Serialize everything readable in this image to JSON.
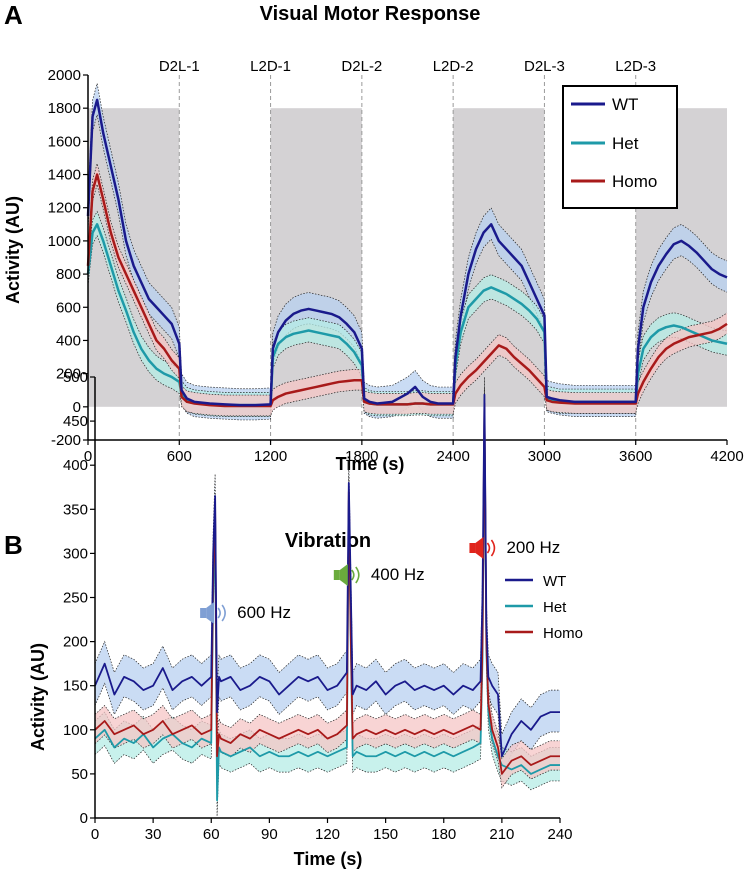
{
  "panel_a": {
    "letter": "A",
    "legend": [
      "WT",
      "Het",
      "Homo"
    ]
  },
  "panel_b": {
    "letter": "B",
    "legend": [
      "WT",
      "Het",
      "Homo"
    ]
  },
  "colors": {
    "wt": "#1a1a8c",
    "het": "#1e9aa8",
    "homo": "#a81a1a",
    "wt_band": "#b8d0f0",
    "het_band": "#b6ece6",
    "homo_band": "#f6c6c6",
    "dark_shade": "#d4d2d4",
    "icon_600": "#7f9fd4",
    "icon_400": "#6aab3c",
    "icon_200": "#e0241c"
  },
  "icons": [
    "speaker-icon-600hz",
    "speaker-icon-400hz",
    "speaker-icon-200hz"
  ],
  "chart_data": [
    {
      "type": "line",
      "title": "Visual Motor Response",
      "xlabel": "Time (s)",
      "ylabel": "Activity (AU)",
      "xlim": [
        0,
        4200
      ],
      "ylim": [
        -200,
        2000
      ],
      "xticks": [
        0,
        600,
        1200,
        1800,
        2400,
        3000,
        3600,
        4200
      ],
      "yticks": [
        -200,
        0,
        200,
        400,
        600,
        800,
        1000,
        1200,
        1400,
        1600,
        1800,
        2000
      ],
      "phases": [
        {
          "label": "D2L-1",
          "at": 600
        },
        {
          "label": "L2D-1",
          "at": 1200
        },
        {
          "label": "D2L-2",
          "at": 1800
        },
        {
          "label": "L2D-2",
          "at": 2400
        },
        {
          "label": "D2L-3",
          "at": 3000
        },
        {
          "label": "L2D-3",
          "at": 3600
        }
      ],
      "dark_periods": [
        [
          0,
          600
        ],
        [
          1200,
          1800
        ],
        [
          2400,
          3000
        ],
        [
          3600,
          4200
        ]
      ],
      "dark_period_top": 1800,
      "legend_position": "top-right",
      "series": [
        {
          "name": "WT",
          "x": [
            0,
            30,
            60,
            100,
            150,
            200,
            250,
            300,
            350,
            400,
            450,
            500,
            550,
            600,
            615,
            650,
            700,
            800,
            900,
            1000,
            1100,
            1200,
            1215,
            1250,
            1300,
            1350,
            1400,
            1450,
            1500,
            1550,
            1600,
            1650,
            1700,
            1750,
            1800,
            1815,
            1850,
            1900,
            2000,
            2100,
            2150,
            2200,
            2250,
            2300,
            2400,
            2415,
            2450,
            2500,
            2550,
            2600,
            2650,
            2700,
            2750,
            2800,
            2850,
            2900,
            2950,
            3000,
            3015,
            3050,
            3100,
            3200,
            3300,
            3400,
            3500,
            3600,
            3615,
            3650,
            3700,
            3750,
            3800,
            3850,
            3900,
            3950,
            4000,
            4050,
            4100,
            4150,
            4200
          ],
          "y": [
            1150,
            1750,
            1850,
            1650,
            1450,
            1250,
            1000,
            850,
            750,
            650,
            600,
            550,
            500,
            380,
            100,
            50,
            30,
            20,
            15,
            10,
            10,
            15,
            350,
            450,
            520,
            560,
            580,
            590,
            580,
            570,
            560,
            540,
            500,
            450,
            350,
            50,
            30,
            20,
            30,
            80,
            120,
            60,
            30,
            20,
            20,
            300,
            550,
            800,
            950,
            1050,
            1100,
            1000,
            950,
            900,
            850,
            750,
            650,
            550,
            60,
            50,
            40,
            30,
            30,
            30,
            30,
            30,
            350,
            600,
            750,
            850,
            920,
            980,
            1000,
            970,
            930,
            880,
            830,
            800,
            780
          ]
        },
        {
          "name": "Het",
          "x": [
            0,
            30,
            60,
            100,
            150,
            200,
            250,
            300,
            350,
            400,
            450,
            500,
            550,
            600,
            615,
            650,
            700,
            800,
            900,
            1000,
            1100,
            1200,
            1215,
            1250,
            1300,
            1350,
            1400,
            1450,
            1500,
            1550,
            1600,
            1650,
            1700,
            1750,
            1800,
            1815,
            1850,
            1900,
            2000,
            2100,
            2150,
            2200,
            2250,
            2300,
            2400,
            2415,
            2450,
            2500,
            2550,
            2600,
            2650,
            2700,
            2750,
            2800,
            2850,
            2900,
            2950,
            3000,
            3015,
            3050,
            3100,
            3200,
            3300,
            3400,
            3500,
            3600,
            3615,
            3650,
            3700,
            3750,
            3800,
            3850,
            3900,
            3950,
            4000,
            4050,
            4100,
            4150,
            4200
          ],
          "y": [
            800,
            1050,
            1100,
            1000,
            850,
            700,
            580,
            450,
            350,
            280,
            230,
            200,
            180,
            150,
            80,
            40,
            25,
            15,
            10,
            10,
            10,
            10,
            300,
            380,
            420,
            440,
            450,
            460,
            450,
            440,
            430,
            420,
            380,
            330,
            250,
            40,
            20,
            15,
            15,
            15,
            20,
            20,
            15,
            15,
            15,
            250,
            450,
            600,
            650,
            700,
            720,
            700,
            680,
            650,
            620,
            580,
            530,
            450,
            50,
            40,
            30,
            30,
            30,
            30,
            30,
            30,
            200,
            350,
            420,
            460,
            480,
            490,
            480,
            460,
            440,
            420,
            400,
            390,
            380
          ]
        },
        {
          "name": "Homo",
          "x": [
            0,
            30,
            60,
            100,
            150,
            200,
            250,
            300,
            350,
            400,
            450,
            500,
            550,
            600,
            615,
            650,
            700,
            800,
            900,
            1000,
            1100,
            1200,
            1215,
            1250,
            1300,
            1350,
            1400,
            1450,
            1500,
            1550,
            1600,
            1650,
            1700,
            1750,
            1800,
            1815,
            1850,
            1900,
            2000,
            2100,
            2150,
            2200,
            2250,
            2300,
            2400,
            2415,
            2450,
            2500,
            2550,
            2600,
            2650,
            2700,
            2750,
            2800,
            2850,
            2900,
            2950,
            3000,
            3015,
            3050,
            3100,
            3200,
            3300,
            3400,
            3500,
            3600,
            3615,
            3650,
            3700,
            3750,
            3800,
            3850,
            3900,
            3950,
            4000,
            4050,
            4100,
            4150,
            4200
          ],
          "y": [
            850,
            1300,
            1400,
            1250,
            1050,
            900,
            800,
            700,
            600,
            500,
            400,
            350,
            280,
            230,
            60,
            30,
            20,
            10,
            5,
            5,
            5,
            5,
            40,
            60,
            80,
            90,
            100,
            110,
            120,
            130,
            140,
            150,
            155,
            160,
            160,
            30,
            20,
            15,
            15,
            15,
            20,
            20,
            15,
            15,
            15,
            80,
            130,
            180,
            220,
            270,
            320,
            370,
            350,
            300,
            260,
            220,
            170,
            120,
            40,
            30,
            25,
            20,
            20,
            20,
            20,
            20,
            80,
            150,
            230,
            300,
            350,
            380,
            400,
            420,
            430,
            440,
            450,
            470,
            500
          ]
        }
      ]
    },
    {
      "type": "line",
      "title": "Vibration",
      "xlabel": "Time (s)",
      "ylabel": "Activity (AU)",
      "xlim": [
        0,
        240
      ],
      "ylim": [
        0,
        500
      ],
      "xticks": [
        0,
        30,
        60,
        90,
        120,
        150,
        180,
        210,
        240
      ],
      "yticks": [
        0,
        50,
        100,
        150,
        200,
        250,
        300,
        350,
        400,
        450,
        500
      ],
      "legend_position": "top-right",
      "annotations": [
        {
          "label": "600 Hz",
          "x": 62
        },
        {
          "label": "400 Hz",
          "x": 131
        },
        {
          "label": "200 Hz",
          "x": 201
        }
      ],
      "series": [
        {
          "name": "WT",
          "x": [
            0,
            5,
            10,
            15,
            20,
            25,
            30,
            35,
            40,
            45,
            50,
            55,
            60,
            61,
            62,
            63,
            64,
            65,
            70,
            75,
            80,
            85,
            90,
            95,
            100,
            105,
            110,
            115,
            120,
            125,
            130,
            131,
            132,
            133,
            135,
            140,
            145,
            150,
            155,
            160,
            165,
            170,
            175,
            180,
            185,
            190,
            195,
            199,
            200,
            201,
            202,
            203,
            205,
            208,
            210,
            215,
            220,
            225,
            230,
            235,
            240
          ],
          "y": [
            150,
            175,
            140,
            160,
            155,
            145,
            150,
            170,
            145,
            155,
            160,
            150,
            160,
            300,
            365,
            120,
            160,
            155,
            160,
            145,
            150,
            160,
            155,
            140,
            150,
            160,
            155,
            160,
            145,
            150,
            165,
            380,
            260,
            140,
            150,
            145,
            155,
            140,
            150,
            155,
            145,
            150,
            145,
            150,
            140,
            150,
            145,
            155,
            250,
            480,
            220,
            160,
            150,
            140,
            70,
            95,
            110,
            100,
            115,
            120,
            120
          ]
        },
        {
          "name": "Het",
          "x": [
            0,
            5,
            10,
            15,
            20,
            25,
            30,
            35,
            40,
            45,
            50,
            55,
            60,
            61,
            62,
            63,
            64,
            65,
            70,
            75,
            80,
            85,
            90,
            95,
            100,
            105,
            110,
            115,
            120,
            125,
            130,
            131,
            132,
            133,
            135,
            140,
            145,
            150,
            155,
            160,
            165,
            170,
            175,
            180,
            185,
            190,
            195,
            199,
            200,
            201,
            202,
            203,
            205,
            208,
            210,
            215,
            220,
            225,
            230,
            235,
            240
          ],
          "y": [
            90,
            100,
            80,
            90,
            85,
            95,
            80,
            90,
            95,
            85,
            80,
            90,
            85,
            250,
            340,
            20,
            80,
            75,
            70,
            75,
            80,
            70,
            75,
            70,
            70,
            75,
            70,
            75,
            70,
            75,
            80,
            360,
            200,
            70,
            75,
            70,
            70,
            75,
            70,
            75,
            70,
            75,
            70,
            75,
            70,
            75,
            80,
            85,
            180,
            460,
            190,
            120,
            90,
            70,
            60,
            55,
            60,
            50,
            55,
            60,
            60
          ]
        },
        {
          "name": "Homo",
          "x": [
            0,
            5,
            10,
            15,
            20,
            25,
            30,
            35,
            40,
            45,
            50,
            55,
            60,
            61,
            62,
            63,
            64,
            65,
            70,
            75,
            80,
            85,
            90,
            95,
            100,
            105,
            110,
            115,
            120,
            125,
            130,
            131,
            132,
            133,
            135,
            140,
            145,
            150,
            155,
            160,
            165,
            170,
            175,
            180,
            185,
            190,
            195,
            199,
            200,
            201,
            202,
            203,
            205,
            208,
            210,
            215,
            220,
            225,
            230,
            235,
            240
          ],
          "y": [
            100,
            110,
            95,
            100,
            105,
            95,
            100,
            110,
            95,
            100,
            105,
            95,
            100,
            280,
            350,
            70,
            95,
            90,
            85,
            95,
            90,
            100,
            95,
            90,
            95,
            100,
            95,
            100,
            90,
            95,
            105,
            370,
            210,
            90,
            95,
            100,
            95,
            100,
            95,
            100,
            95,
            100,
            95,
            100,
            95,
            100,
            105,
            100,
            200,
            470,
            200,
            130,
            100,
            80,
            50,
            65,
            70,
            60,
            65,
            70,
            70
          ]
        }
      ]
    }
  ]
}
